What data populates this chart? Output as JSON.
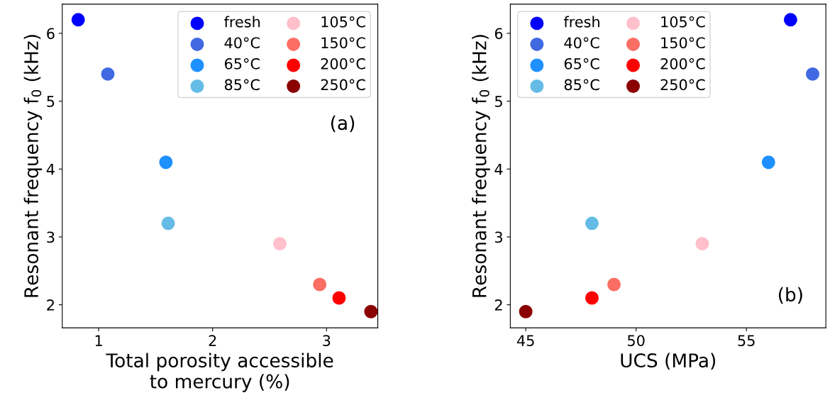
{
  "chart_data": [
    {
      "type": "scatter",
      "xlabel": "Total porosity accessible\nto mercury (%)",
      "ylabel": "Resonant frequency f$_{0}$ (kHz)",
      "annotations": [
        "(a)"
      ],
      "xlim": [
        0.68,
        3.45
      ],
      "xticks": [
        1,
        2,
        3
      ],
      "ylim": [
        1.66,
        6.43
      ],
      "yticks": [
        2,
        3,
        4,
        5,
        6
      ],
      "legend": "top right",
      "marker": "circle",
      "grid": false,
      "series": [
        {
          "name": "fresh",
          "color": "#0000ff",
          "x": [
            0.82
          ],
          "values": [
            6.2
          ]
        },
        {
          "name": "40°C",
          "color": "#4169e1",
          "x": [
            1.08
          ],
          "values": [
            5.4
          ]
        },
        {
          "name": "65°C",
          "color": "#1e90ff",
          "x": [
            1.59
          ],
          "values": [
            4.1
          ]
        },
        {
          "name": "85°C",
          "color": "#64bce6",
          "x": [
            1.61
          ],
          "values": [
            3.2
          ]
        },
        {
          "name": "105°C",
          "color": "#ffc0cb",
          "x": [
            2.59
          ],
          "values": [
            2.9
          ]
        },
        {
          "name": "150°C",
          "color": "#fa6e64",
          "x": [
            2.94
          ],
          "values": [
            2.3
          ]
        },
        {
          "name": "200°C",
          "color": "#ff0000",
          "x": [
            3.11
          ],
          "values": [
            2.1
          ]
        },
        {
          "name": "250°C",
          "color": "#8b0000",
          "x": [
            3.39
          ],
          "values": [
            1.9
          ]
        }
      ]
    },
    {
      "type": "scatter",
      "xlabel": "UCS (MPa)",
      "ylabel": "Resonant frequency f$_{0}$ (kHz)",
      "annotations": [
        "(b)"
      ],
      "xlim": [
        44.3,
        58.6
      ],
      "xticks": [
        45,
        50,
        55
      ],
      "ylim": [
        1.66,
        6.43
      ],
      "yticks": [
        2,
        3,
        4,
        5,
        6
      ],
      "legend": "top left",
      "marker": "circle",
      "grid": false,
      "series": [
        {
          "name": "fresh",
          "color": "#0000ff",
          "x": [
            57.0
          ],
          "values": [
            6.2
          ]
        },
        {
          "name": "40°C",
          "color": "#4169e1",
          "x": [
            58.0
          ],
          "values": [
            5.4
          ]
        },
        {
          "name": "65°C",
          "color": "#1e90ff",
          "x": [
            56.0
          ],
          "values": [
            4.1
          ]
        },
        {
          "name": "85°C",
          "color": "#64bce6",
          "x": [
            48.0
          ],
          "values": [
            3.2
          ]
        },
        {
          "name": "105°C",
          "color": "#ffc0cb",
          "x": [
            53.0
          ],
          "values": [
            2.9
          ]
        },
        {
          "name": "150°C",
          "color": "#fa6e64",
          "x": [
            49.0
          ],
          "values": [
            2.3
          ]
        },
        {
          "name": "200°C",
          "color": "#ff0000",
          "x": [
            48.0
          ],
          "values": [
            2.1
          ]
        },
        {
          "name": "250°C",
          "color": "#8b0000",
          "x": [
            45.0
          ],
          "values": [
            1.9
          ]
        }
      ]
    }
  ]
}
